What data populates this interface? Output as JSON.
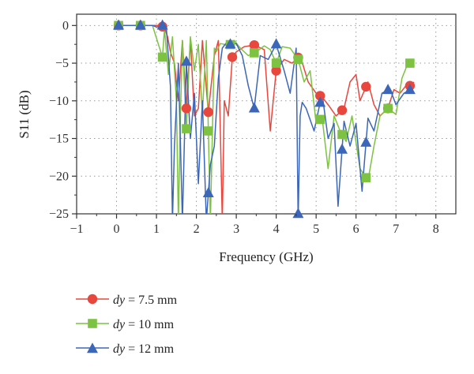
{
  "chart_data": {
    "type": "line",
    "xlabel": "Frequency (GHz)",
    "ylabel": "S11 (dB)",
    "xlim": [
      -1,
      8.5
    ],
    "ylim": [
      -25,
      1.5
    ],
    "xticks": [
      -1,
      0,
      1,
      2,
      3,
      4,
      5,
      6,
      7,
      8
    ],
    "yticks": [
      0,
      -5,
      -10,
      -15,
      -20,
      -25
    ],
    "grid": true,
    "legend_position": "below-plot",
    "series": [
      {
        "name_var": "dy",
        "name_rest": " = 7.5 mm",
        "color": "#e8473e",
        "marker": "circle",
        "x": [
          0,
          0.3,
          0.6,
          0.9,
          1.1,
          1.2,
          1.28,
          1.35,
          1.45,
          1.55,
          1.65,
          1.75,
          1.85,
          1.95,
          2.05,
          2.15,
          2.3,
          2.45,
          2.55,
          2.65,
          2.7,
          2.8,
          2.9,
          3.0,
          3.2,
          3.45,
          3.7,
          3.85,
          4.0,
          4.2,
          4.4,
          4.6,
          4.8,
          5.0,
          5.15,
          5.3,
          5.5,
          5.7,
          5.85,
          6.0,
          6.1,
          6.3,
          6.45,
          6.6,
          6.8,
          6.95,
          7.1,
          7.25,
          7.4,
          7.45
        ],
        "y": [
          0,
          0,
          0,
          0,
          0,
          -0.3,
          -1.5,
          -3.5,
          -5,
          -10,
          -2,
          -11,
          -1.8,
          -12,
          -11,
          -2,
          -11.5,
          -4,
          -2,
          -26,
          -10,
          -12,
          -4.2,
          -3.5,
          -2.8,
          -2.6,
          -3.2,
          -14,
          -6,
          -4.5,
          -5,
          -4,
          -7.5,
          -9,
          -9.5,
          -10.5,
          -12,
          -11,
          -7.5,
          -6.5,
          -10,
          -7.5,
          -10.5,
          -12,
          -11,
          -8.5,
          -9,
          -8,
          -8,
          -7.5
        ]
      },
      {
        "name_var": "dy",
        "name_rest": " = 10 mm",
        "color": "#7dc241",
        "marker": "square",
        "x": [
          0,
          0.3,
          0.6,
          0.9,
          1.15,
          1.2,
          1.3,
          1.4,
          1.5,
          1.55,
          1.6,
          1.65,
          1.75,
          1.85,
          1.95,
          2.05,
          2.15,
          2.25,
          2.35,
          2.45,
          2.5,
          2.6,
          2.7,
          2.8,
          2.95,
          3.1,
          3.3,
          3.5,
          3.7,
          3.85,
          4.0,
          4.15,
          4.35,
          4.55,
          4.7,
          4.85,
          5.0,
          5.15,
          5.3,
          5.45,
          5.6,
          5.75,
          5.9,
          6.1,
          6.3,
          6.45,
          6.6,
          6.8,
          7.0,
          7.15,
          7.3,
          7.4
        ],
        "y": [
          0,
          0,
          0,
          0,
          -4.2,
          -0.5,
          -6.5,
          -1.5,
          -10,
          -26,
          -12,
          -2,
          -13.7,
          -1.5,
          -6,
          -2.5,
          -11.6,
          -2,
          -26,
          -3,
          -3.5,
          -2.4,
          -2.5,
          -2.8,
          -2,
          -3,
          -4,
          -3.5,
          -2.7,
          -3.2,
          -5,
          -2.8,
          -3,
          -4.5,
          -7.5,
          -6,
          -13,
          -12.2,
          -19,
          -12,
          -14,
          -15.4,
          -12,
          -19,
          -20.6,
          -16,
          -12,
          -11,
          -11.8,
          -7,
          -5,
          -5
        ]
      },
      {
        "name_var": "dy",
        "name_rest": " = 12 mm",
        "color": "#3c66b8",
        "marker": "triangle",
        "x": [
          0,
          0.3,
          0.6,
          0.9,
          1.0,
          1.15,
          1.25,
          1.35,
          1.4,
          1.45,
          1.55,
          1.65,
          1.75,
          1.85,
          1.95,
          2.05,
          2.15,
          2.25,
          2.35,
          2.45,
          2.55,
          2.65,
          2.75,
          2.85,
          3.0,
          3.15,
          3.3,
          3.45,
          3.6,
          3.8,
          4.0,
          4.2,
          4.35,
          4.5,
          4.55,
          4.6,
          4.65,
          4.75,
          4.95,
          5.15,
          5.3,
          5.45,
          5.55,
          5.7,
          5.85,
          6.0,
          6.15,
          6.3,
          6.45,
          6.65,
          6.85,
          7.0,
          7.2,
          7.4
        ],
        "y": [
          0,
          0,
          0,
          0,
          -0.2,
          0,
          -0.5,
          -8,
          -26,
          -16,
          -5,
          -26,
          -4.8,
          -15,
          -9,
          -21,
          -10,
          -26,
          -18.5,
          -16,
          -7,
          -3,
          -2.3,
          -2.5,
          -2.4,
          -4,
          -8,
          -11,
          -4,
          -4.5,
          -2.5,
          -6,
          -9,
          -3,
          -26,
          -12,
          -10.2,
          -11,
          -14,
          -9,
          -15,
          -13,
          -24,
          -12.7,
          -16,
          -13,
          -22,
          -12.3,
          -14,
          -9,
          -8.4,
          -10.5,
          -9,
          -8.4
        ]
      }
    ]
  }
}
